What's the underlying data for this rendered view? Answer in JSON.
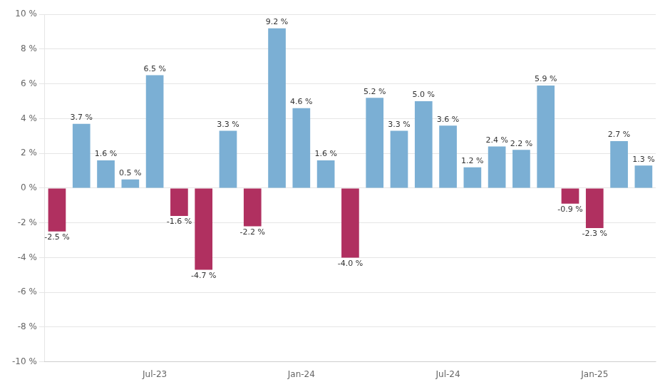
{
  "chart_data": {
    "type": "bar",
    "categories": [
      null,
      null,
      null,
      null,
      "Jul-23",
      null,
      null,
      null,
      null,
      null,
      "Jan-24",
      null,
      null,
      null,
      null,
      null,
      "Jul-24",
      null,
      null,
      null,
      null,
      null,
      "Jan-25",
      null,
      null
    ],
    "values": [
      -2.5,
      3.7,
      1.6,
      0.5,
      6.5,
      -1.6,
      -4.7,
      3.3,
      -2.2,
      9.2,
      4.6,
      1.6,
      -4.0,
      5.2,
      3.3,
      5.0,
      3.6,
      1.2,
      2.4,
      2.2,
      5.9,
      -0.9,
      -2.3,
      2.7,
      1.3
    ],
    "value_labels": [
      "-2.5 %",
      "3.7 %",
      "1.6 %",
      "0.5 %",
      "6.5 %",
      "-1.6 %",
      "-4.7 %",
      "3.3 %",
      "-2.2 %",
      "9.2 %",
      "4.6 %",
      "1.6 %",
      "-4.0 %",
      "5.2 %",
      "3.3 %",
      "5.0 %",
      "3.6 %",
      "1.2 %",
      "2.4 %",
      "2.2 %",
      "5.9 %",
      "-0.9 %",
      "-2.3 %",
      "2.7 %",
      "1.3 %"
    ],
    "colors": [
      "#b03060",
      "#7bafd4",
      "#7bafd4",
      "#7bafd4",
      "#7bafd4",
      "#b03060",
      "#b03060",
      "#7bafd4",
      "#b03060",
      "#7bafd4",
      "#7bafd4",
      "#7bafd4",
      "#b03060",
      "#7bafd4",
      "#7bafd4",
      "#7bafd4",
      "#7bafd4",
      "#7bafd4",
      "#7bafd4",
      "#7bafd4",
      "#7bafd4",
      "#b03060",
      "#b03060",
      "#7bafd4",
      "#7bafd4"
    ],
    "ylim": [
      -10,
      10
    ],
    "yticks": [
      {
        "value": -10,
        "label": "-10 %"
      },
      {
        "value": -8,
        "label": "-8 %"
      },
      {
        "value": -6,
        "label": "-6 %"
      },
      {
        "value": -4,
        "label": "-4 %"
      },
      {
        "value": -2,
        "label": "-2 %"
      },
      {
        "value": 0,
        "label": "0 %"
      },
      {
        "value": 2,
        "label": "2 %"
      },
      {
        "value": 4,
        "label": "4 %"
      },
      {
        "value": 6,
        "label": "6 %"
      },
      {
        "value": 8,
        "label": "8 %"
      },
      {
        "value": 10,
        "label": "10 %"
      }
    ],
    "grid": true,
    "data_labels": true
  }
}
